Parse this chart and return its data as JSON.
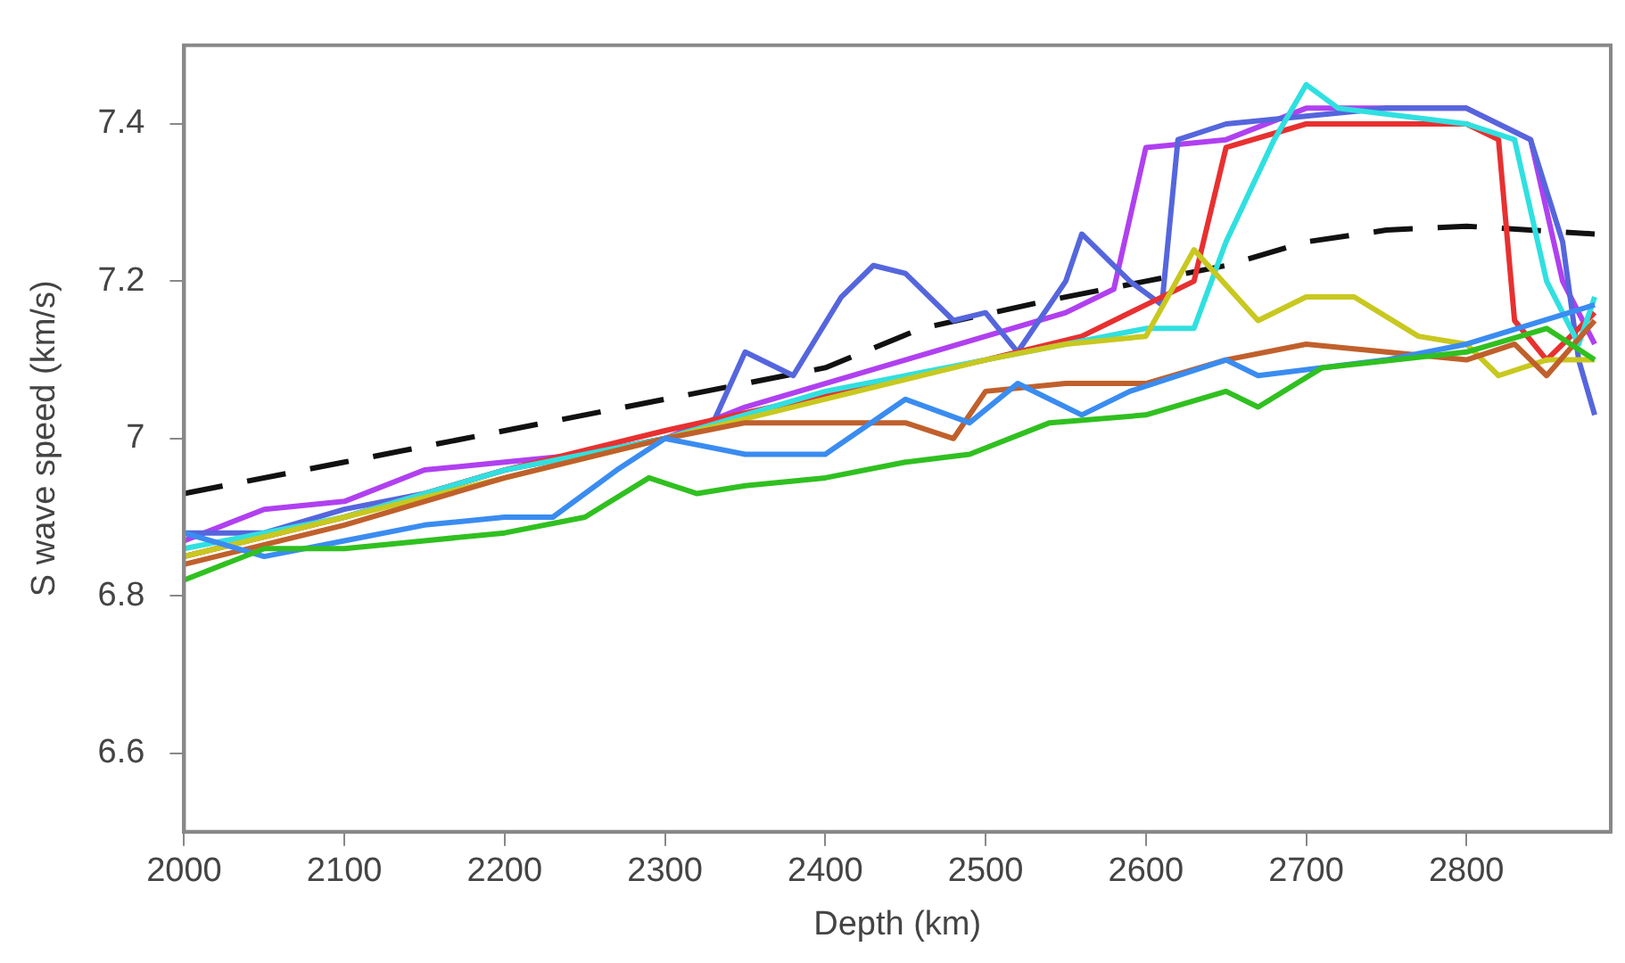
{
  "chart_data": {
    "type": "line",
    "xlabel": "Depth (km)",
    "ylabel": "S wave speed (km/s)",
    "xlim": [
      2000,
      2890
    ],
    "ylim": [
      6.5,
      7.5
    ],
    "xticks": [
      2000,
      2100,
      2200,
      2300,
      2400,
      2500,
      2600,
      2700,
      2800
    ],
    "yticks": [
      6.6,
      6.8,
      7,
      7.2,
      7.4
    ],
    "grid": false,
    "legend": false,
    "marker": "none",
    "series": [
      {
        "color": "#30c020",
        "x": [
          2000,
          2050,
          2100,
          2150,
          2200,
          2250,
          2290,
          2320,
          2350,
          2400,
          2450,
          2490,
          2540,
          2600,
          2650,
          2670,
          2710,
          2800,
          2850,
          2880
        ],
        "values": [
          6.82,
          6.86,
          6.86,
          6.87,
          6.88,
          6.9,
          6.95,
          6.93,
          6.94,
          6.95,
          6.97,
          6.98,
          7.02,
          7.03,
          7.06,
          7.04,
          7.09,
          7.11,
          7.14,
          7.1
        ]
      },
      {
        "color": "#3a8cf0",
        "x": [
          2000,
          2050,
          2100,
          2150,
          2200,
          2230,
          2270,
          2300,
          2350,
          2400,
          2450,
          2490,
          2520,
          2560,
          2590,
          2650,
          2670,
          2750,
          2800,
          2880
        ],
        "values": [
          6.88,
          6.85,
          6.87,
          6.89,
          6.9,
          6.9,
          6.96,
          7.0,
          6.98,
          6.98,
          7.05,
          7.02,
          7.07,
          7.03,
          7.06,
          7.1,
          7.08,
          7.1,
          7.12,
          7.17
        ]
      },
      {
        "color": "#c0602c",
        "x": [
          2000,
          2100,
          2200,
          2300,
          2350,
          2400,
          2450,
          2480,
          2500,
          2550,
          2600,
          2650,
          2700,
          2750,
          2800,
          2830,
          2850,
          2880
        ],
        "values": [
          6.84,
          6.89,
          6.95,
          7.0,
          7.02,
          7.02,
          7.02,
          7.0,
          7.06,
          7.07,
          7.07,
          7.1,
          7.12,
          7.11,
          7.1,
          7.12,
          7.08,
          7.15
        ]
      },
      {
        "color": "#c8c820",
        "x": [
          2000,
          2100,
          2200,
          2300,
          2400,
          2500,
          2550,
          2600,
          2630,
          2670,
          2700,
          2730,
          2770,
          2800,
          2820,
          2850,
          2880
        ],
        "values": [
          6.85,
          6.9,
          6.95,
          7.0,
          7.05,
          7.1,
          7.12,
          7.13,
          7.24,
          7.15,
          7.18,
          7.18,
          7.13,
          7.12,
          7.08,
          7.1,
          7.1
        ]
      },
      {
        "color": "#30e0e0",
        "x": [
          2000,
          2100,
          2200,
          2300,
          2400,
          2500,
          2600,
          2630,
          2650,
          2680,
          2700,
          2720,
          2800,
          2830,
          2850,
          2870,
          2880
        ],
        "values": [
          6.86,
          6.9,
          6.96,
          7.0,
          7.06,
          7.1,
          7.14,
          7.14,
          7.25,
          7.38,
          7.45,
          7.42,
          7.4,
          7.38,
          7.2,
          7.12,
          7.18
        ]
      },
      {
        "color": "#e83030",
        "x": [
          2000,
          2100,
          2200,
          2300,
          2500,
          2560,
          2600,
          2630,
          2650,
          2700,
          2800,
          2820,
          2830,
          2850,
          2880
        ],
        "values": [
          6.85,
          6.9,
          6.96,
          7.01,
          7.1,
          7.13,
          7.17,
          7.2,
          7.37,
          7.4,
          7.4,
          7.38,
          7.15,
          7.1,
          7.16
        ]
      },
      {
        "color": "#5566dd",
        "x": [
          2000,
          2050,
          2100,
          2150,
          2200,
          2250,
          2300,
          2330,
          2350,
          2380,
          2410,
          2430,
          2450,
          2480,
          2500,
          2520,
          2550,
          2560,
          2590,
          2610,
          2620,
          2650,
          2750,
          2800,
          2840,
          2860,
          2870,
          2880
        ],
        "values": [
          6.88,
          6.88,
          6.91,
          6.93,
          6.96,
          6.98,
          7.0,
          7.02,
          7.11,
          7.08,
          7.18,
          7.22,
          7.21,
          7.15,
          7.16,
          7.11,
          7.2,
          7.26,
          7.2,
          7.17,
          7.38,
          7.4,
          7.42,
          7.42,
          7.38,
          7.25,
          7.1,
          7.03
        ]
      },
      {
        "color": "#b040f0",
        "x": [
          2000,
          2050,
          2100,
          2150,
          2200,
          2250,
          2300,
          2350,
          2400,
          2450,
          2500,
          2550,
          2580,
          2600,
          2650,
          2700,
          2800,
          2840,
          2860,
          2880
        ],
        "values": [
          6.87,
          6.91,
          6.92,
          6.96,
          6.97,
          6.98,
          7.0,
          7.04,
          7.07,
          7.1,
          7.13,
          7.16,
          7.19,
          7.37,
          7.38,
          7.42,
          7.42,
          7.38,
          7.2,
          7.12
        ]
      },
      {
        "color": "#111111",
        "line_style": "dashed",
        "x": [
          2000,
          2100,
          2200,
          2300,
          2400,
          2460,
          2540,
          2600,
          2650,
          2700,
          2750,
          2800,
          2880
        ],
        "values": [
          6.93,
          6.97,
          7.01,
          7.05,
          7.09,
          7.14,
          7.176,
          7.2,
          7.22,
          7.25,
          7.265,
          7.27,
          7.26
        ]
      }
    ]
  }
}
